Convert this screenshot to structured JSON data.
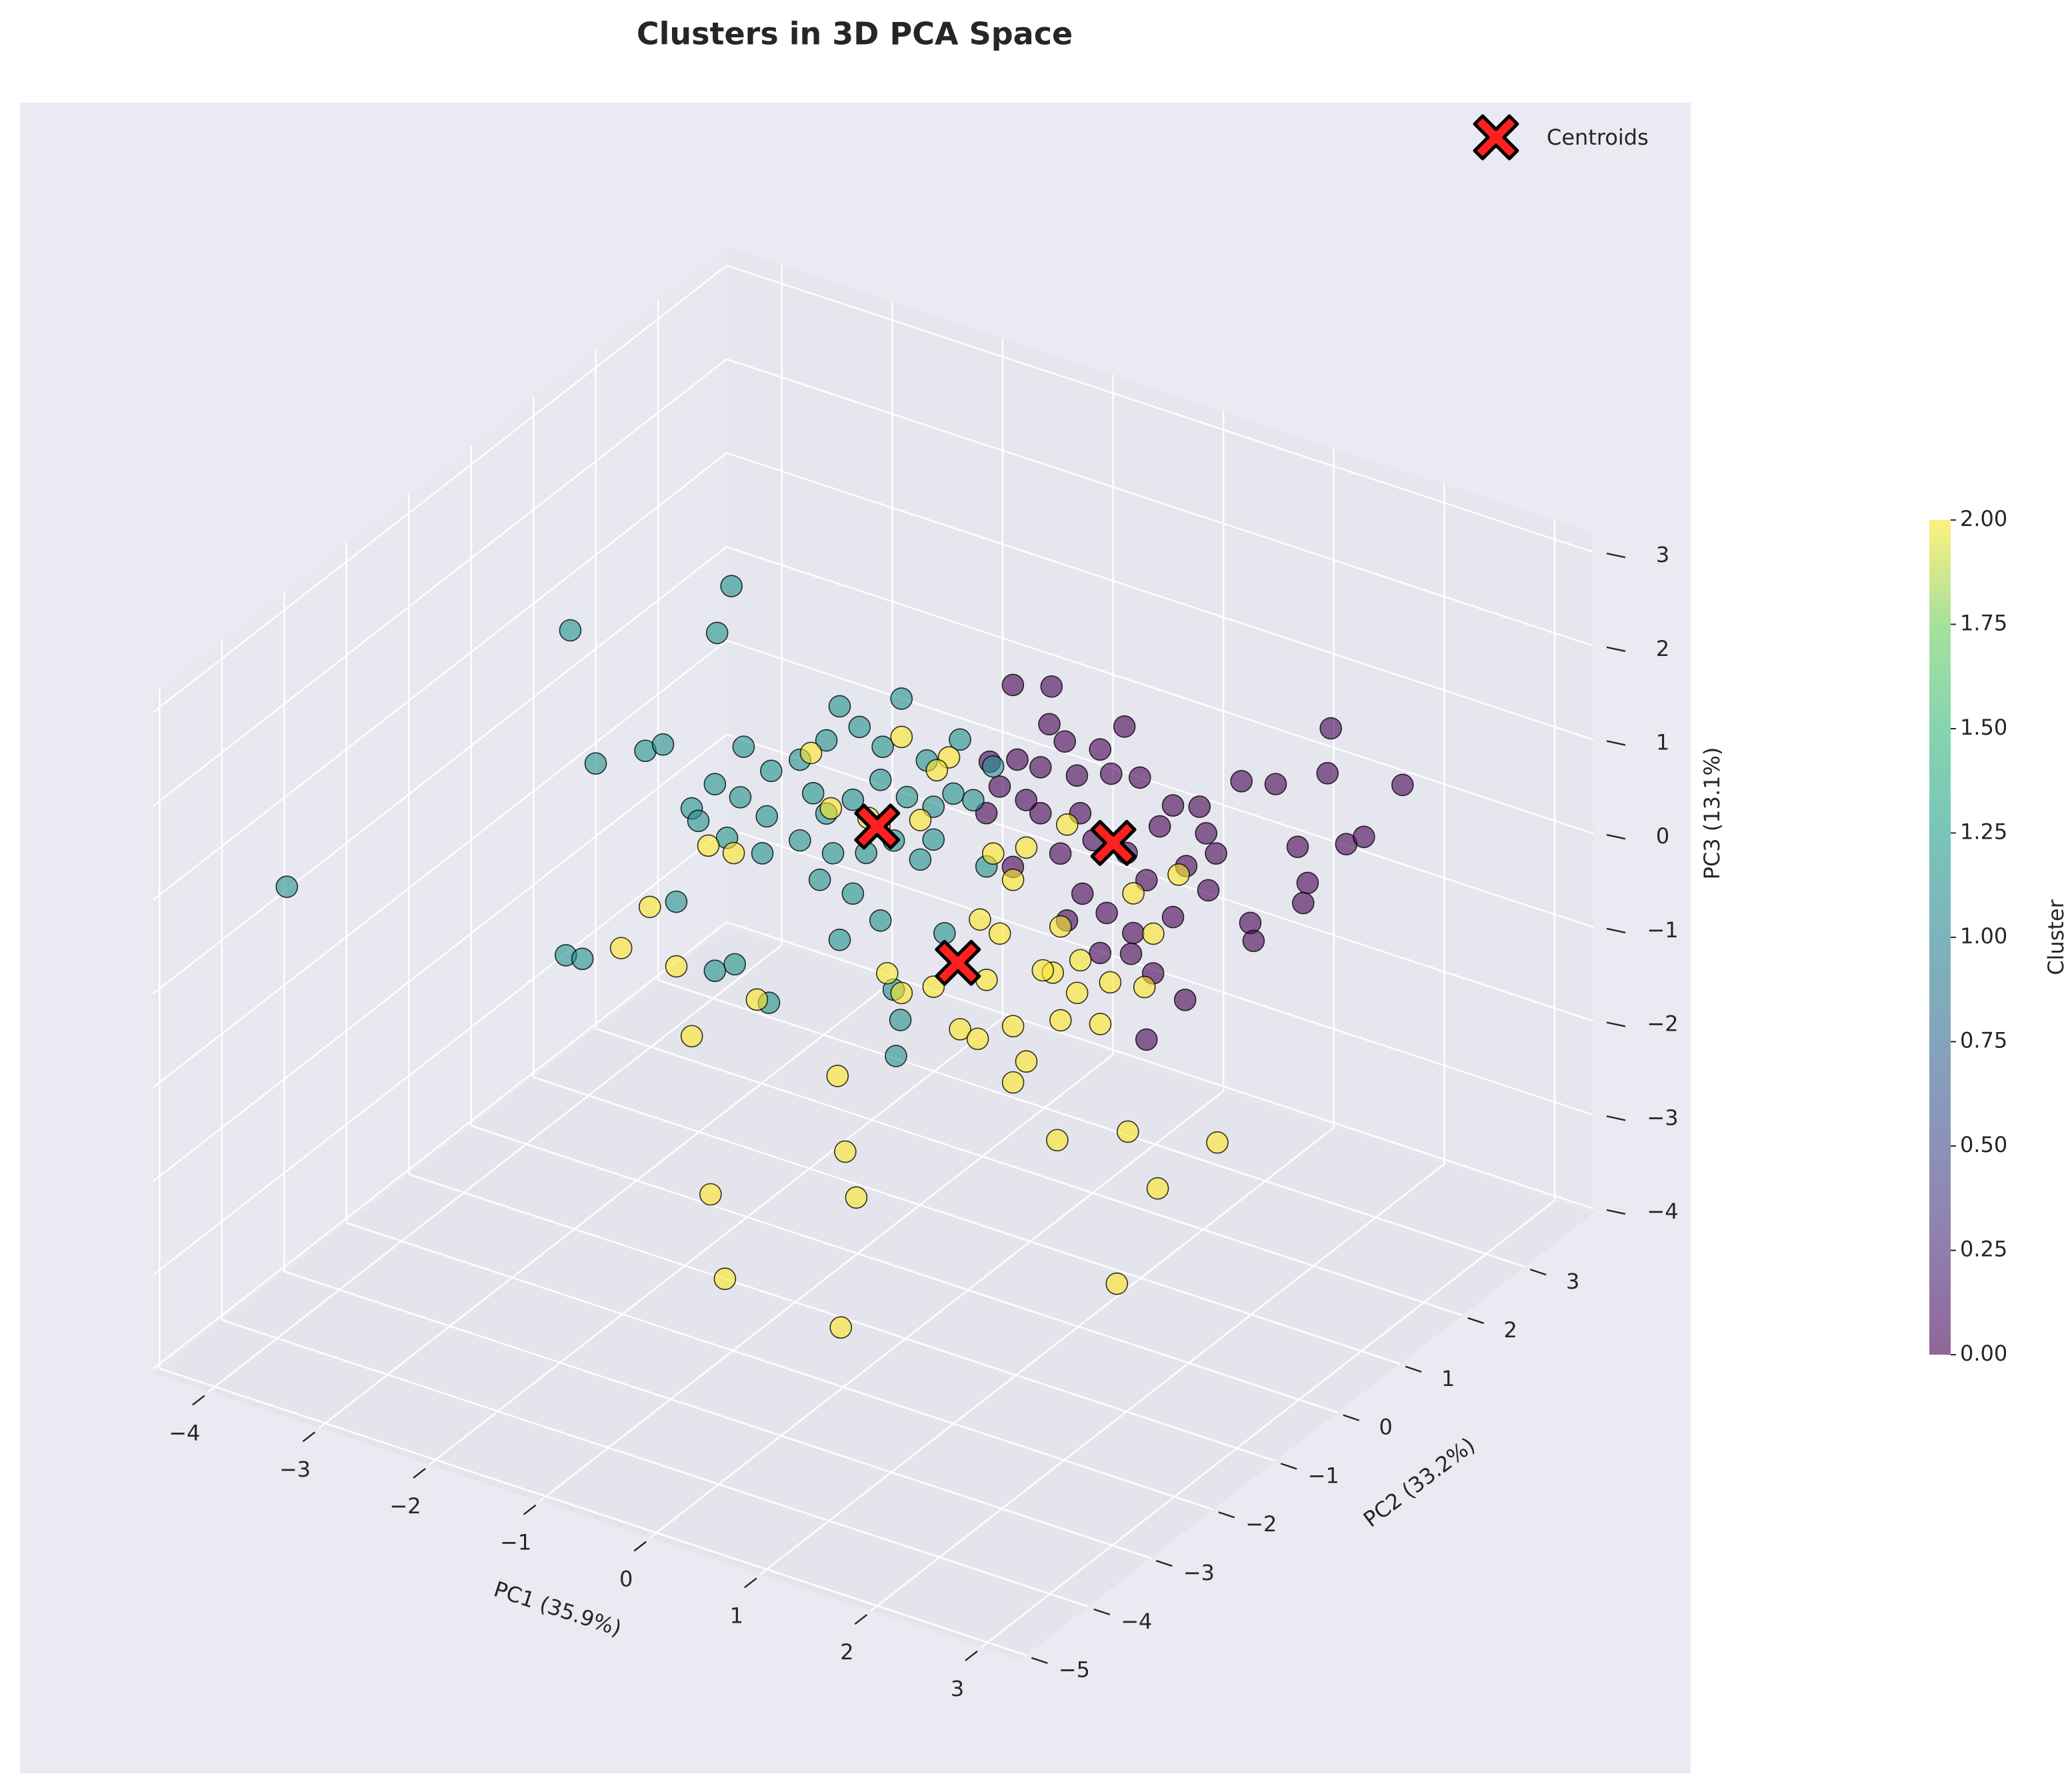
{
  "chart_data": {
    "type": "scatter3d",
    "title": "Clusters in 3D PCA Space",
    "xlabel": "PC1 (35.9%)",
    "ylabel": "PC2 (33.2%)",
    "zlabel": "PC3 (13.1%)",
    "xlim": [
      -4.5,
      3.35
    ],
    "ylim": [
      -5.1,
      4.1
    ],
    "zlim": [
      -4.05,
      3.2
    ],
    "xticks": [
      {
        "value": -4,
        "label": "−4"
      },
      {
        "value": -3,
        "label": "−3"
      },
      {
        "value": -2,
        "label": "−2"
      },
      {
        "value": -1,
        "label": "−1"
      },
      0,
      1,
      2,
      3
    ],
    "yticks": [
      {
        "value": -5,
        "label": "−5"
      },
      {
        "value": -4,
        "label": "−4"
      },
      {
        "value": -3,
        "label": "−3"
      },
      {
        "value": -2,
        "label": "−2"
      },
      {
        "value": -1,
        "label": "−1"
      },
      0,
      1,
      2,
      3
    ],
    "zticks": [
      {
        "value": -4,
        "label": "−4"
      },
      {
        "value": -3,
        "label": "−3"
      },
      {
        "value": -2,
        "label": "−2"
      },
      {
        "value": -1,
        "label": "−1"
      },
      0,
      1,
      2,
      3
    ],
    "grid": true,
    "legend": "upper right",
    "series": [
      {
        "color": "#440154",
        "x": [
          0.17,
          0.52,
          0.5,
          0.64,
          1.18,
          0.96,
          2.53,
          2.5,
          3.18,
          2.24,
          2.55,
          -0.04,
          0.21,
          0.42,
          0.75,
          1.06,
          1.32,
          1.62,
          1.86,
          1.5,
          1.92,
          2.01,
          2.23,
          2.67,
          2.83,
          2.32,
          2.28,
          2.32,
          2.35,
          1.94,
          1.62,
          1.26,
          1.02,
          0.8,
          0.66,
          0.96,
          1.44,
          1.73,
          1.38,
          1.24,
          0.17,
          0.42,
          -0.07,
          0.05,
          0.9,
          1.2,
          0.6,
          1.38,
          1.74,
          0.29,
          0.78
        ],
        "y": [
          0.42,
          0.42,
          0.42,
          0.42,
          0.42,
          0.42,
          1.34,
          1.34,
          1.34,
          0.42,
          0.42,
          0.42,
          0.42,
          0.42,
          0.42,
          0.42,
          0.42,
          0.42,
          0.42,
          0.42,
          0.42,
          0.42,
          1.34,
          1.34,
          1.34,
          1.34,
          1.34,
          0.42,
          0.42,
          0.42,
          0.42,
          0.42,
          0.42,
          0.42,
          0.42,
          0.42,
          0.42,
          0.42,
          0.42,
          0.42,
          0.42,
          0.42,
          0.42,
          0.42,
          0.42,
          0.42,
          0.42,
          0.42,
          0.42,
          0.42,
          0.42
        ],
        "z": [
          2.25,
          2.37,
          1.96,
          1.83,
          2.2,
          1.87,
          2.23,
          1.74,
          1.88,
          2.03,
          2.12,
          1.35,
          1.47,
          1.47,
          1.51,
          1.65,
          1.71,
          1.53,
          1.61,
          1.26,
          1.35,
          1.17,
          0.85,
          1.05,
          1.19,
          0.5,
          0.27,
          0.55,
          0.37,
          0.75,
          0.34,
          0.03,
          0.15,
          0.27,
          -0.07,
          -0.3,
          -0.33,
          -0.5,
          -1.06,
          -0.2,
          0.31,
          0.98,
          0.79,
          1.12,
          0.88,
          0.86,
          0.62,
          0.64,
          0.93,
          1.07,
          1.12
        ]
      },
      {
        "color": "#21918c",
        "x": [
          -1.86,
          -1.99,
          -3.32,
          -0.88,
          -0.32,
          -3.09,
          -2.64,
          -2.48,
          -1.75,
          -1.5,
          -1.24,
          -1.0,
          -0.7,
          -0.49,
          -0.09,
          0.21,
          0.51,
          -1.78,
          -2.01,
          -2.22,
          -2.16,
          -1.54,
          -1.24,
          -1.0,
          -0.76,
          -0.51,
          -0.27,
          -0.03,
          0.15,
          0.33,
          -0.64,
          -0.39,
          -0.15,
          -1.58,
          -1.9,
          -1.06,
          -0.76,
          -0.51,
          -0.88,
          -2.36,
          -3.36,
          -3.21,
          -2.01,
          -1.83,
          -1.52,
          -0.39,
          0.07,
          -0.37,
          -0.33,
          -3.81,
          -0.03,
          0.45,
          -0.94,
          -1.12
        ],
        "y": [
          -0.5,
          -0.5,
          -0.5,
          -0.5,
          -0.5,
          -0.5,
          -0.5,
          -0.5,
          -0.5,
          -0.5,
          -0.5,
          -0.5,
          -0.5,
          -0.5,
          -0.5,
          -0.5,
          -0.5,
          -0.5,
          -0.5,
          -0.5,
          -0.5,
          -0.5,
          -0.5,
          -0.5,
          -0.5,
          -0.5,
          -0.5,
          -0.5,
          -0.5,
          -0.5,
          -0.5,
          -0.5,
          -0.5,
          -0.5,
          -0.5,
          -0.5,
          -0.5,
          -0.5,
          -0.5,
          -0.5,
          -0.5,
          -0.5,
          -0.5,
          -0.5,
          -0.5,
          -0.5,
          -0.5,
          -0.5,
          -0.5,
          -4.18,
          -0.5,
          -0.5,
          -0.5,
          -0.5
        ],
        "z": [
          2.99,
          2.44,
          1.95,
          2.09,
          2.39,
          0.62,
          0.93,
          1.06,
          1.32,
          1.16,
          1.38,
          1.68,
          1.94,
          1.81,
          1.82,
          2.16,
          1.99,
          0.77,
          0.82,
          0.48,
          0.37,
          0.66,
          0.52,
          0.9,
          1.14,
          1.45,
          1.36,
          1.35,
          1.56,
          1.56,
          0.62,
          0.85,
          0.74,
          0.25,
          0.29,
          0.17,
          0.14,
          -0.05,
          -0.4,
          -0.57,
          -1.53,
          -1.51,
          -1.17,
          -1.03,
          -1.32,
          -0.74,
          0.04,
          -1.44,
          -1.04,
          0.93,
          1.0,
          0.9,
          0.5,
          1.07
        ]
      },
      {
        "color": "#fde725",
        "x": [
          0.2,
          0.63,
          -0.62,
          -0.44,
          -0.1,
          0.52,
          0.0,
          0.37,
          1.03,
          1.33,
          -1.32,
          -1.55,
          -2.08,
          -2.34,
          -1.84,
          -1.11,
          -1.7,
          -0.38,
          -0.31,
          -1.53,
          -0.21,
          -1.4,
          -0.35,
          0.2,
          0.73,
          0.89,
          0.97,
          1.21,
          1.33,
          1.21,
          1.64,
          1.57,
          1.79,
          1.64,
          2.0,
          2.09,
          2.4,
          2.48,
          2.71,
          1.7,
          0.49,
          1.09,
          1.48,
          1.61,
          2.25,
          3.06,
          2.52,
          2.15,
          0.07,
          0.91,
          1.21,
          2.3,
          1.82
        ],
        "y": [
          -1.42,
          -1.42,
          -1.42,
          -1.42,
          -1.42,
          -1.42,
          -1.42,
          -1.42,
          -1.42,
          -1.42,
          -1.42,
          -1.42,
          -1.42,
          -1.42,
          -1.42,
          -1.42,
          -1.42,
          -1.42,
          -1.42,
          -1.42,
          -1.42,
          -1.42,
          -1.42,
          -1.42,
          -1.42,
          -1.42,
          -1.42,
          -1.42,
          -1.42,
          -1.42,
          -1.42,
          -1.42,
          -1.42,
          -1.42,
          -1.42,
          -1.42,
          -1.42,
          -1.42,
          -1.42,
          -1.42,
          -1.42,
          -1.42,
          -1.42,
          -1.42,
          -1.42,
          -1.42,
          -1.42,
          -1.42,
          -1.42,
          -1.42,
          -1.42,
          -1.42,
          -1.42
        ],
        "z": [
          2.66,
          2.61,
          2.17,
          1.65,
          1.68,
          2.43,
          1.63,
          1.84,
          1.74,
          1.92,
          0.83,
          0.82,
          -0.04,
          -0.58,
          -0.58,
          -0.65,
          -1.27,
          -1.18,
          -1.96,
          -2.89,
          -2.41,
          -3.74,
          -3.85,
          -0.07,
          -0.25,
          -0.29,
          0.37,
          -0.03,
          -0.36,
          -0.63,
          1.2,
          0.68,
          0.55,
          0.2,
          0.3,
          0.78,
          0.85,
          1.45,
          2.17,
          2.31,
          0.11,
          0.91,
          0.67,
          -1.09,
          -0.75,
          -0.55,
          -1.25,
          -2.41,
          0.09,
          0.99,
          1.53,
          1.81,
          0.91
        ]
      }
    ],
    "centroids": {
      "name": "Centroids",
      "color": "#ff2020",
      "x": [
        1.08,
        -0.54,
        0.71
      ],
      "y": [
        0.42,
        -0.5,
        -1.42
      ],
      "z": [
        0.92,
        0.94,
        0.45
      ]
    },
    "colorbar": {
      "label": "Cluster",
      "lim": [
        0,
        2
      ],
      "ticks": [
        {
          "value": 0,
          "label": "0.00"
        },
        {
          "value": 0.25,
          "label": "0.25"
        },
        {
          "value": 0.5,
          "label": "0.50"
        },
        {
          "value": 0.75,
          "label": "0.75"
        },
        {
          "value": 1,
          "label": "1.00"
        },
        {
          "value": 1.25,
          "label": "1.25"
        },
        {
          "value": 1.5,
          "label": "1.50"
        },
        {
          "value": 1.75,
          "label": "1.75"
        },
        {
          "value": 2,
          "label": "2.00"
        }
      ]
    }
  }
}
